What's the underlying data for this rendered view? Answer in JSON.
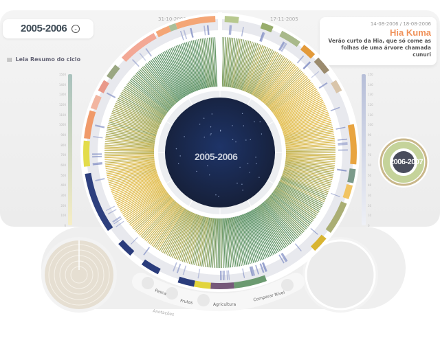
{
  "cycle_selector": {
    "label": "2005-2006",
    "icon": "chevron-down-circle-icon"
  },
  "summary_link": {
    "label": "Leia Resumo do ciclo",
    "icon": "document-icon"
  },
  "dates": {
    "left": "31-10-2006",
    "right": "17-11-2005"
  },
  "info_card": {
    "date_range": "14-08-2006 / 18-08-2006",
    "title": "Hia Kuma",
    "description_line1": "Verão curto da Hia, que só come as",
    "description_line2": "folhas de uma árvore chamada cunuri",
    "title_color": "#f0925a"
  },
  "center_label": "2005-2006",
  "next_cycle_label": "2006-2007",
  "scale_left_ticks": [
    "1500",
    "1400",
    "1300",
    "1200",
    "1100",
    "1000",
    "900",
    "800",
    "700",
    "600",
    "500",
    "400",
    "300",
    "200",
    "100",
    "0"
  ],
  "scale_right_ticks": [
    "150",
    "140",
    "130",
    "120",
    "110",
    "100",
    "90",
    "80",
    "70",
    "60",
    "50",
    "40",
    "30",
    "20",
    "10",
    "0"
  ],
  "buttons": {
    "pesca": "Pesca",
    "frutas": "Frutas",
    "agricultura": "Agricultura",
    "comparar": "Comparar Nível",
    "anotacoes": "Anotações"
  },
  "colors": {
    "outer_ring_bg": "#ffffff",
    "gray_band": "#e8e9ee",
    "sky": "#16203a",
    "left_circle": "#e6dfd2",
    "right_circle": "#ececec"
  },
  "outer_ring_segments": [
    {
      "start": 2,
      "end": 8,
      "color": "#b7c88e"
    },
    {
      "start": 18,
      "end": 23,
      "color": "#98ad6c"
    },
    {
      "start": 27,
      "end": 36,
      "color": "#a9b98b"
    },
    {
      "start": 38,
      "end": 44,
      "color": "#e39a3a"
    },
    {
      "start": 46,
      "end": 53,
      "color": "#9b8b6e"
    },
    {
      "start": 58,
      "end": 63,
      "color": "#d9c5aa"
    },
    {
      "start": 78,
      "end": 95,
      "color": "#e8a440"
    },
    {
      "start": 97,
      "end": 103,
      "color": "#7b9a8a"
    },
    {
      "start": 104,
      "end": 110,
      "color": "#f1c462"
    },
    {
      "start": 112,
      "end": 126,
      "color": "#aaae74"
    },
    {
      "start": 129,
      "end": 136,
      "color": "#d8b431"
    },
    {
      "start": 160,
      "end": 174,
      "color": "#6b9a70"
    },
    {
      "start": 174,
      "end": 184,
      "color": "#76587a"
    },
    {
      "start": 184,
      "end": 191,
      "color": "#e2d43c"
    },
    {
      "start": 191,
      "end": 198,
      "color": "#2a3c7c"
    },
    {
      "start": 207,
      "end": 215,
      "color": "#2a3c7c"
    },
    {
      "start": 221,
      "end": 228,
      "color": "#2a3c7c"
    },
    {
      "start": 235,
      "end": 261,
      "color": "#2d3f7e"
    },
    {
      "start": 264,
      "end": 275,
      "color": "#e3dc4a"
    },
    {
      "start": 276,
      "end": 288,
      "color": "#f09a6a"
    },
    {
      "start": 289,
      "end": 295,
      "color": "#f2b5a0"
    },
    {
      "start": 297,
      "end": 302,
      "color": "#e9998a"
    },
    {
      "start": 304,
      "end": 310,
      "color": "#9aa782"
    },
    {
      "start": 314,
      "end": 331,
      "color": "#f3a895"
    },
    {
      "start": 332,
      "end": 338,
      "color": "#f4a676"
    },
    {
      "start": 338,
      "end": 341,
      "color": "#a9bf9a"
    },
    {
      "start": 341,
      "end": 358,
      "color": "#f4a676"
    }
  ]
}
